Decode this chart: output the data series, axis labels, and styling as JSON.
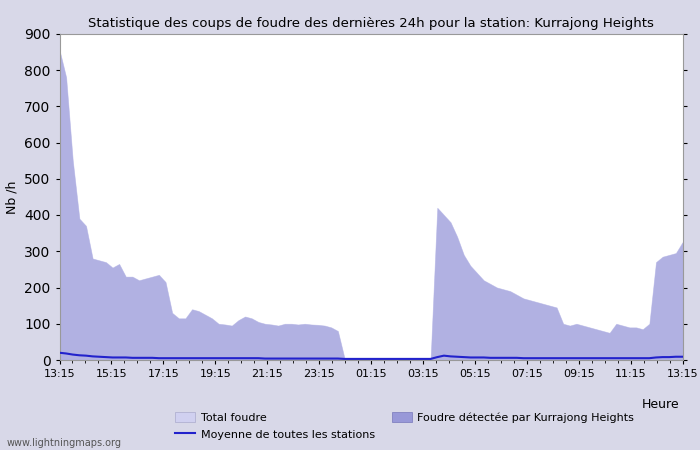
{
  "title": "Statistique des coups de foudre des dernières 24h pour la station: Kurrajong Heights",
  "ylabel": "Nb /h",
  "xlabel_right": "Heure",
  "watermark": "www.lightningmaps.org",
  "ylim": [
    0,
    900
  ],
  "yticks": [
    0,
    100,
    200,
    300,
    400,
    500,
    600,
    700,
    800,
    900
  ],
  "xtick_labels": [
    "13:15",
    "15:15",
    "17:15",
    "19:15",
    "21:15",
    "23:15",
    "01:15",
    "03:15",
    "05:15",
    "07:15",
    "09:15",
    "11:15",
    "13:15"
  ],
  "bg_color": "#d8d8e8",
  "plot_bg_color": "#ffffff",
  "fill_color_total": "#d0d0f0",
  "fill_color_detected": "#9898d8",
  "line_color_mean": "#2222cc",
  "legend": {
    "total_foudre": "Total foudre",
    "moyenne": "Moyenne de toutes les stations",
    "detected": "Foudre détectée par Kurrajong Heights"
  },
  "total_foudre": [
    855,
    780,
    550,
    390,
    370,
    280,
    275,
    270,
    255,
    265,
    230,
    230,
    220,
    225,
    230,
    235,
    215,
    130,
    115,
    115,
    140,
    135,
    125,
    115,
    100,
    98,
    95,
    110,
    120,
    115,
    105,
    100,
    98,
    95,
    100,
    100,
    98,
    100,
    98,
    97,
    95,
    90,
    80,
    5,
    5,
    5,
    5,
    5,
    5,
    5,
    5,
    5,
    5,
    5,
    5,
    5,
    5,
    420,
    400,
    380,
    340,
    290,
    260,
    240,
    220,
    210,
    200,
    195,
    190,
    180,
    170,
    165,
    160,
    155,
    150,
    145,
    100,
    95,
    100,
    95,
    90,
    85,
    80,
    75,
    100,
    95,
    90,
    90,
    85,
    100,
    270,
    285,
    290,
    295,
    325
  ],
  "detected_foudre": [
    855,
    780,
    550,
    390,
    370,
    280,
    275,
    270,
    255,
    265,
    230,
    230,
    220,
    225,
    230,
    235,
    215,
    130,
    115,
    115,
    140,
    135,
    125,
    115,
    100,
    98,
    95,
    110,
    120,
    115,
    105,
    100,
    98,
    95,
    100,
    100,
    98,
    100,
    98,
    97,
    95,
    90,
    80,
    5,
    5,
    5,
    5,
    5,
    5,
    5,
    5,
    5,
    5,
    5,
    5,
    5,
    5,
    420,
    400,
    380,
    340,
    290,
    260,
    240,
    220,
    210,
    200,
    195,
    190,
    180,
    170,
    165,
    160,
    155,
    150,
    145,
    100,
    95,
    100,
    95,
    90,
    85,
    80,
    75,
    100,
    95,
    90,
    90,
    85,
    100,
    270,
    285,
    290,
    295,
    325
  ],
  "mean_foudre": [
    20,
    18,
    15,
    13,
    12,
    10,
    9,
    8,
    7,
    7,
    7,
    6,
    6,
    6,
    6,
    5,
    5,
    5,
    5,
    5,
    5,
    5,
    5,
    5,
    5,
    5,
    5,
    5,
    5,
    5,
    5,
    4,
    4,
    4,
    4,
    4,
    4,
    4,
    4,
    4,
    4,
    4,
    4,
    3,
    3,
    3,
    3,
    3,
    3,
    3,
    3,
    3,
    3,
    3,
    3,
    3,
    3,
    8,
    12,
    10,
    9,
    8,
    7,
    7,
    7,
    6,
    6,
    6,
    6,
    6,
    5,
    5,
    5,
    5,
    5,
    5,
    5,
    5,
    5,
    5,
    5,
    5,
    5,
    5,
    5,
    5,
    5,
    5,
    5,
    5,
    7,
    8,
    8,
    9,
    9
  ]
}
